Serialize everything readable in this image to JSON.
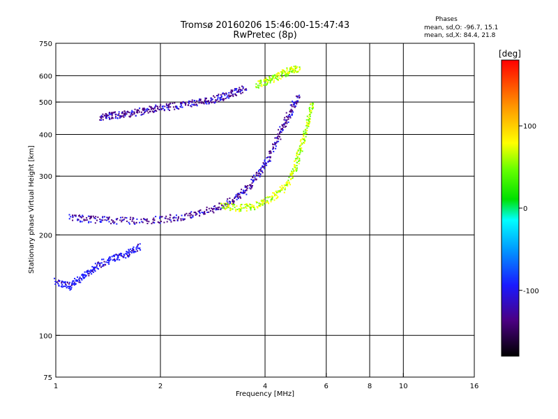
{
  "chart_data": {
    "type": "scatter",
    "title": "Tromsø 20160206 15:46:00-15:47:43",
    "subtitle": "RwPretec (8p)",
    "xlabel": "Frequency [MHz]",
    "ylabel": "Stationary phase Virtual Height [km]",
    "xscale": "log",
    "yscale": "log",
    "xlim": [
      1,
      16
    ],
    "ylim": [
      75,
      750
    ],
    "xticks": [
      1,
      2,
      4,
      6,
      8,
      10,
      16
    ],
    "yticks": [
      75,
      100,
      200,
      300,
      400,
      500,
      600,
      750
    ],
    "xgrid": [
      2,
      4,
      6,
      8,
      10
    ],
    "ygrid": [
      100,
      200,
      300,
      400,
      500,
      600
    ],
    "phase_info": {
      "title": "Phases",
      "line1": "mean, sd,O: -96.7, 15.1",
      "line2": "mean, sd,X:  84.4, 21.8"
    },
    "colorbar": {
      "label": "[deg]",
      "ticks": [
        100,
        0,
        -100
      ],
      "range": [
        -180,
        180
      ]
    },
    "traces": [
      {
        "comment": "upper F2 trace (blue)",
        "phase": -100,
        "points": [
          [
            1.35,
            450
          ],
          [
            1.45,
            455
          ],
          [
            1.6,
            460
          ],
          [
            1.8,
            470
          ],
          [
            2.0,
            480
          ],
          [
            2.3,
            490
          ],
          [
            2.6,
            500
          ],
          [
            2.9,
            510
          ],
          [
            3.2,
            530
          ],
          [
            3.5,
            550
          ]
        ]
      },
      {
        "comment": "X-mode high trace (yellow)",
        "phase": 80,
        "points": [
          [
            3.8,
            560
          ],
          [
            4.1,
            580
          ],
          [
            4.4,
            600
          ],
          [
            4.7,
            620
          ],
          [
            5.0,
            630
          ]
        ]
      },
      {
        "comment": "lower F trace (blue)",
        "phase": -100,
        "points": [
          [
            1.1,
            225
          ],
          [
            1.3,
            222
          ],
          [
            1.6,
            220
          ],
          [
            2.0,
            222
          ],
          [
            2.4,
            228
          ],
          [
            2.8,
            238
          ],
          [
            3.2,
            252
          ],
          [
            3.5,
            270
          ],
          [
            3.8,
            300
          ],
          [
            4.1,
            340
          ],
          [
            4.4,
            400
          ],
          [
            4.7,
            460
          ],
          [
            5.0,
            520
          ]
        ]
      },
      {
        "comment": "lower X trace (yellow)",
        "phase": 80,
        "points": [
          [
            3.0,
            245
          ],
          [
            3.4,
            240
          ],
          [
            3.8,
            245
          ],
          [
            4.2,
            258
          ],
          [
            4.6,
            280
          ],
          [
            4.9,
            320
          ],
          [
            5.1,
            370
          ],
          [
            5.3,
            430
          ],
          [
            5.5,
            500
          ]
        ]
      },
      {
        "comment": "E-region trace (blue/green)",
        "phase": -80,
        "points": [
          [
            1.0,
            145
          ],
          [
            1.1,
            140
          ],
          [
            1.2,
            150
          ],
          [
            1.3,
            160
          ],
          [
            1.45,
            170
          ],
          [
            1.6,
            175
          ],
          [
            1.75,
            185
          ]
        ]
      }
    ]
  }
}
